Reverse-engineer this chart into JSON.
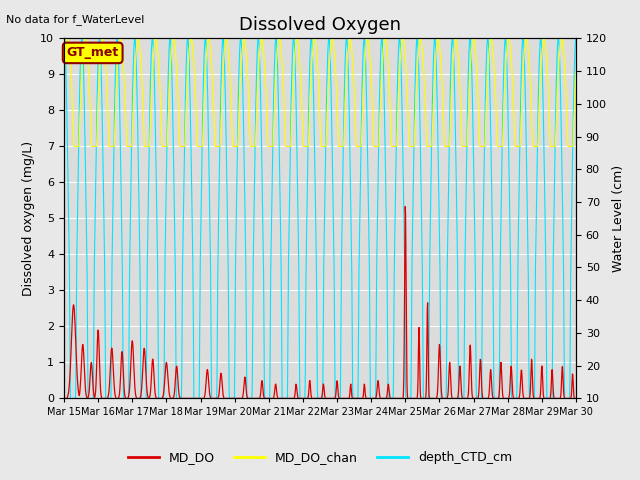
{
  "title": "Dissolved Oxygen",
  "top_left_text": "No data for f_WaterLevel",
  "ylabel_left": "Dissolved oxygen (mg/L)",
  "ylabel_right": "Water Level (cm)",
  "ylim_left": [
    0.0,
    10.0
  ],
  "ylim_right": [
    10,
    120
  ],
  "yticks_left": [
    0.0,
    1.0,
    2.0,
    3.0,
    4.0,
    5.0,
    6.0,
    7.0,
    8.0,
    9.0,
    10.0
  ],
  "yticks_right": [
    10,
    20,
    30,
    40,
    50,
    60,
    70,
    80,
    90,
    100,
    110,
    120
  ],
  "xtick_labels": [
    "Mar 15",
    "Mar 16",
    "Mar 17",
    "Mar 18",
    "Mar 19",
    "Mar 20",
    "Mar 21",
    "Mar 22",
    "Mar 23",
    "Mar 24",
    "Mar 25",
    "Mar 26",
    "Mar 27",
    "Mar 28",
    "Mar 29",
    "Mar 30"
  ],
  "fig_bg_color": "#e8e8e8",
  "plot_bg_color": "#dcdcdc",
  "grid_color": "#ffffff",
  "legend_labels": [
    "MD_DO",
    "MD_DO_chan",
    "depth_CTD_cm"
  ],
  "legend_colors": [
    "#dd0000",
    "#ffff00",
    "#00e5ff"
  ],
  "annotation_box_text": "GT_met",
  "annotation_box_color": "#ffff00",
  "annotation_box_border": "#8b0000",
  "line_md_do_color": "#dd0000",
  "line_md_do_chan_color": "#ffff00",
  "line_depth_ctd_color": "#00e5ff",
  "title_fontsize": 13,
  "label_fontsize": 9,
  "tick_fontsize": 8,
  "xtick_fontsize": 7
}
